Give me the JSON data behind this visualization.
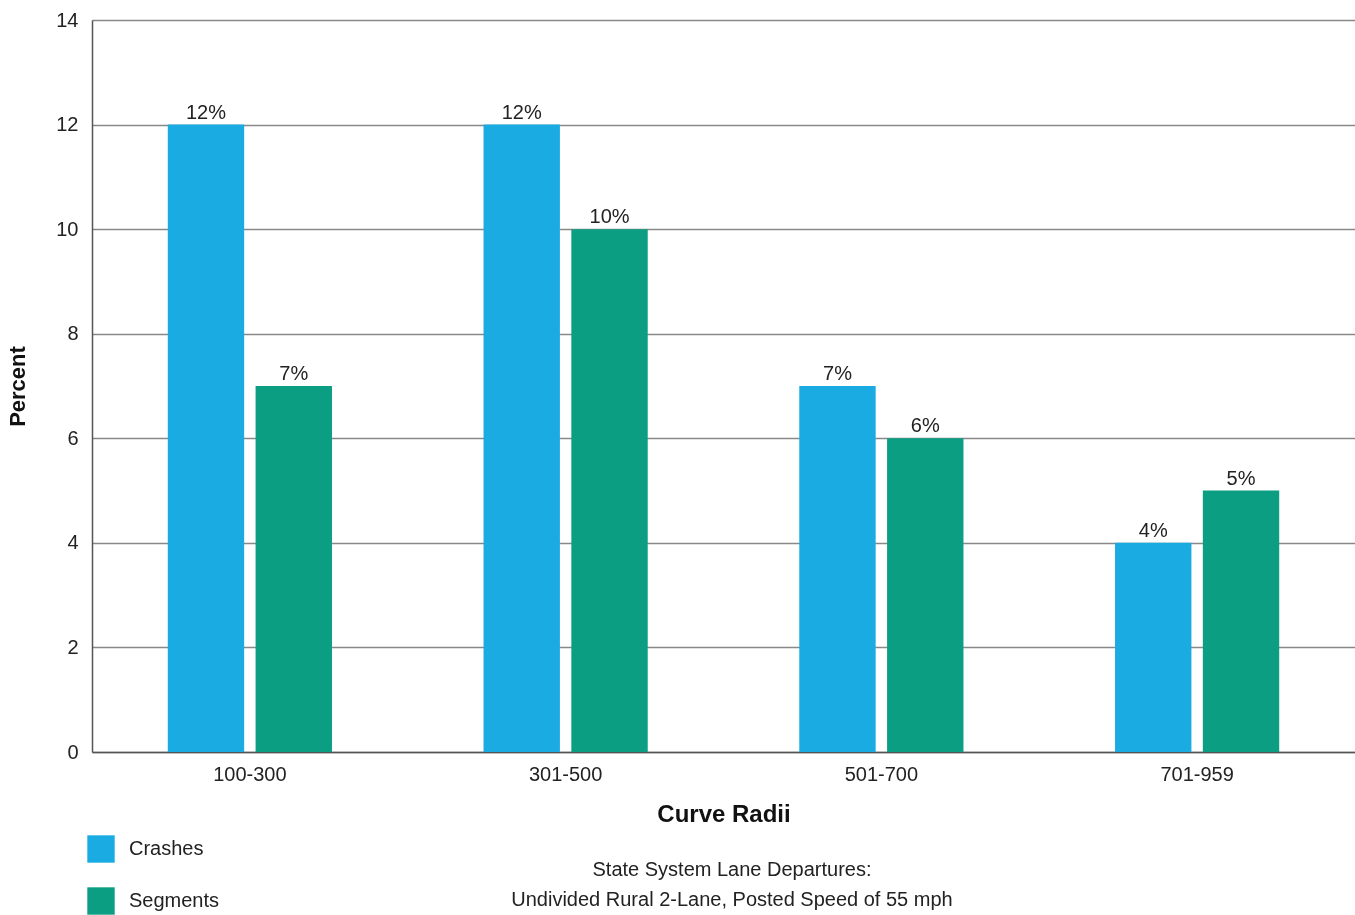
{
  "chart_data": {
    "type": "bar",
    "xlabel": "Curve Radii",
    "ylabel": "Percent",
    "categories": [
      "100-300",
      "301-500",
      "501-700",
      "701-959"
    ],
    "series": [
      {
        "name": "Crashes",
        "color": "#1aabe2",
        "values": [
          12,
          12,
          7,
          4
        ],
        "value_labels": [
          "12%",
          "12%",
          "7%",
          "4%"
        ]
      },
      {
        "name": "Segments",
        "color": "#0b9e82",
        "values": [
          7,
          10,
          6,
          5
        ],
        "value_labels": [
          "7%",
          "10%",
          "6%",
          "5%"
        ]
      }
    ],
    "ylim": [
      0,
      14
    ],
    "yticks": [
      0,
      2,
      4,
      6,
      8,
      10,
      12,
      14
    ],
    "grid": "y",
    "legend": "bottom left",
    "annotations": [
      "State System Lane Departures:",
      "Undivided Rural 2-Lane, Posted Speed of 55 mph"
    ]
  }
}
